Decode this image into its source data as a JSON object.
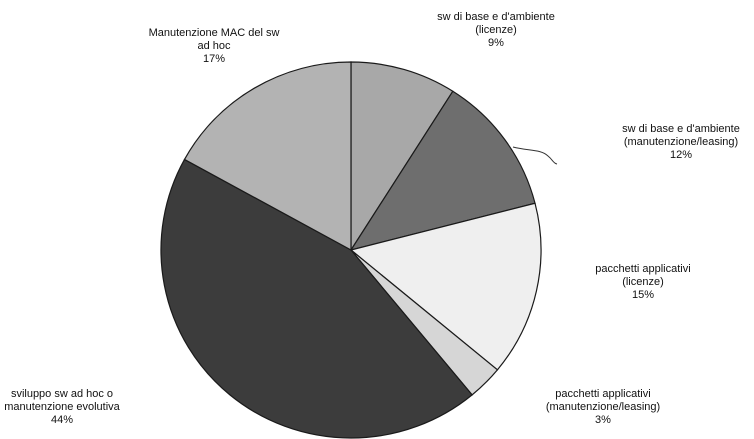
{
  "chart_data": {
    "type": "pie",
    "slices": [
      {
        "label_lines": [
          "sw di base e d'ambiente",
          "(licenze)"
        ],
        "percent_label": "9%",
        "value": 9,
        "color": "#a8a8a8"
      },
      {
        "label_lines": [
          "sw di base e d'ambiente",
          "(manutenzione/leasing)"
        ],
        "percent_label": "12%",
        "value": 12,
        "color": "#6e6e6e"
      },
      {
        "label_lines": [
          "pacchetti applicativi",
          "(licenze)"
        ],
        "percent_label": "15%",
        "value": 15,
        "color": "#efefef"
      },
      {
        "label_lines": [
          "pacchetti applicativi",
          "(manutenzione/leasing)"
        ],
        "percent_label": "3%",
        "value": 3,
        "color": "#d6d6d6"
      },
      {
        "label_lines": [
          "sviluppo sw ad hoc o",
          "manutenzione evolutiva"
        ],
        "percent_label": "44%",
        "value": 44,
        "color": "#3c3c3c"
      },
      {
        "label_lines": [
          "Manutenzione MAC del sw",
          "ad hoc"
        ],
        "percent_label": "17%",
        "value": 17,
        "color": "#b3b3b3"
      }
    ],
    "start": "12 o'clock",
    "direction": "clockwise",
    "legend": "none"
  }
}
